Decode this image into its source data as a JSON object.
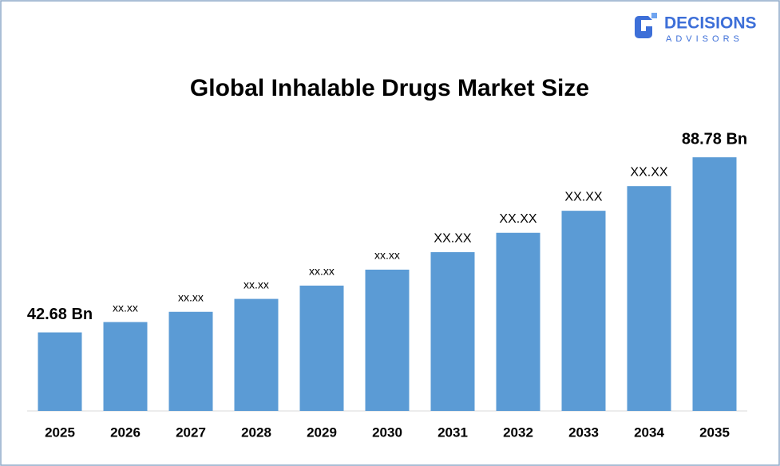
{
  "logo": {
    "name": "DECISIONS",
    "tagline": "ADVISORS"
  },
  "chart_data": {
    "type": "bar",
    "title": "Global Inhalable Drugs Market Size",
    "categories": [
      "2025",
      "2026",
      "2027",
      "2028",
      "2029",
      "2030",
      "2031",
      "2032",
      "2033",
      "2034",
      "2035"
    ],
    "values": [
      42.68,
      45.4,
      48.1,
      51.5,
      55.0,
      59.2,
      63.8,
      68.9,
      74.7,
      81.2,
      88.78
    ],
    "value_labels": [
      "42.68 Bn",
      "xx.xx",
      "xx.xx",
      "xx.xx",
      "xx.xx",
      "xx.xx",
      "XX.XX",
      "XX.XX",
      "XX.XX",
      "XX.XX",
      "88.78 Bn"
    ],
    "color": "#5b9bd5",
    "ylim": [
      22,
      97
    ]
  }
}
